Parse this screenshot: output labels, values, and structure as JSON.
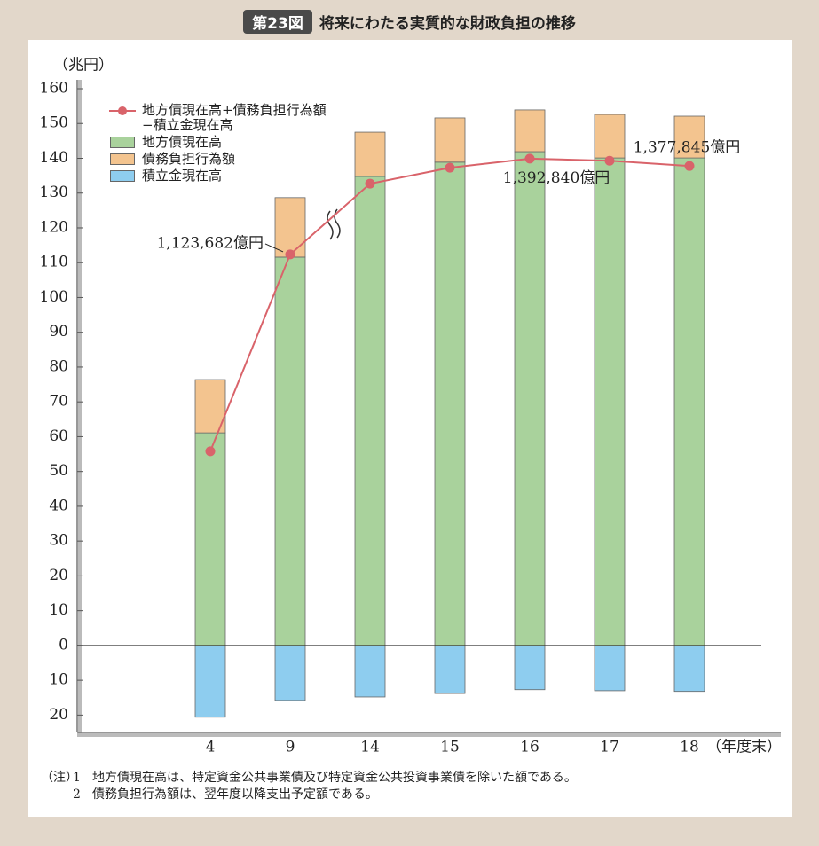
{
  "chart_data": {
    "type": "stacked-bar-line",
    "figure_label": "第23図",
    "title": "将来にわたる実質的な財政負担の推移",
    "y_label": "（兆円）",
    "x_label": "（年度末）",
    "categories": [
      "4",
      "9",
      "14",
      "15",
      "16",
      "17",
      "18"
    ],
    "ylim": [
      -25,
      160
    ],
    "yticks": [
      {
        "value": -20,
        "label": "20"
      },
      {
        "value": -10,
        "label": "10"
      },
      0,
      10,
      20,
      30,
      40,
      50,
      60,
      70,
      80,
      90,
      100,
      110,
      120,
      130,
      140,
      150,
      160
    ],
    "series": [
      {
        "name": "地方債現在高+債務負担行為額\n−積立金現在高",
        "kind": "line",
        "color": "#d9636a",
        "values": [
          55.8,
          112.3682,
          132.7,
          137.3,
          139.9,
          139.284,
          137.7845
        ],
        "value_labels": [
          null,
          "1,123,682億円",
          null,
          null,
          null,
          "1,392,840億円",
          "1,377,845億円"
        ]
      },
      {
        "name": "地方債現在高",
        "kind": "bar",
        "color": "#a9d29c",
        "values": [
          61.1,
          111.6,
          134.8,
          138.9,
          141.9,
          140.1,
          140.1
        ]
      },
      {
        "name": "債務負担行為額",
        "kind": "bar",
        "color": "#f3c48f",
        "values": [
          15.3,
          17.1,
          12.7,
          12.7,
          12.0,
          12.5,
          12.0
        ]
      },
      {
        "name": "積立金現在高",
        "kind": "bar",
        "color": "#8ecdef",
        "values": [
          -20.6,
          -15.8,
          -14.8,
          -13.8,
          -12.7,
          -13.0,
          -13.2
        ]
      }
    ],
    "notes_title": "（注）",
    "notes": [
      {
        "number": "1",
        "text": "地方債現在高は、特定資金公共事業債及び特定資金公共投資事業債を除いた額である。"
      },
      {
        "number": "2",
        "text": "債務負担行為額は、翌年度以降支出予定額である。"
      }
    ]
  }
}
